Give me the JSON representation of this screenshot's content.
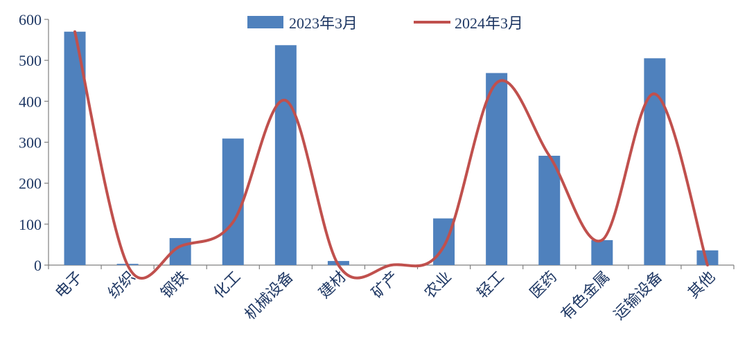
{
  "chart_data": {
    "type": "bar",
    "categories": [
      "电子",
      "纺织",
      "钢铁",
      "化工",
      "机械设备",
      "建材",
      "矿产",
      "农业",
      "轻工",
      "医药",
      "有色金属",
      "运输设备",
      "其他"
    ],
    "series": [
      {
        "name": "2023年3月",
        "type": "bar",
        "color": "#4f81bd",
        "values": [
          570,
          3,
          66,
          309,
          537,
          10,
          0,
          114,
          469,
          267,
          61,
          505,
          36
        ]
      },
      {
        "name": "2024年3月",
        "type": "line",
        "smooth": true,
        "color": "#c0504d",
        "values": [
          570,
          0,
          46,
          105,
          402,
          0,
          0,
          46,
          445,
          267,
          61,
          418,
          0
        ]
      }
    ],
    "yticks": [
      "0",
      "100",
      "200",
      "300",
      "400",
      "500",
      "600"
    ],
    "ylim": [
      0,
      600
    ],
    "legend_position": "top",
    "grid": false
  }
}
